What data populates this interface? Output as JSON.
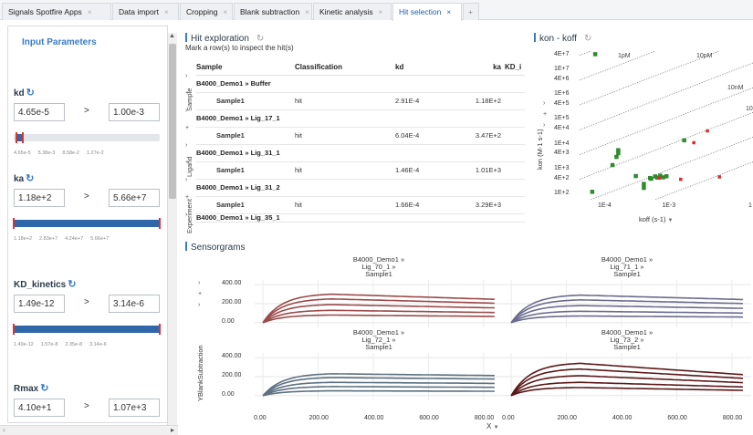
{
  "tabs": [
    {
      "label": "Signals Spotfire Apps",
      "active": false
    },
    {
      "label": "Data import",
      "active": false
    },
    {
      "label": "Cropping",
      "active": false
    },
    {
      "label": "Blank subtraction",
      "active": false
    },
    {
      "label": "Kinetic analysis",
      "active": false
    },
    {
      "label": "Hit selection",
      "active": true
    }
  ],
  "tab_plus": "+",
  "tab_close": "×",
  "left_panel": {
    "title": "Input Parameters",
    "params": [
      {
        "label": "kd",
        "low": "4.65e-5",
        "high": "1.00e-3",
        "ticks": [
          "4.65e-5",
          "5.38e-3",
          "8.58e-2",
          "1.27e-2"
        ],
        "fill_start": 0.02,
        "fill_end": 0.06
      },
      {
        "label": "ka",
        "low": "1.18e+2",
        "high": "5.66e+7",
        "ticks": [
          "1.18e+2",
          "2.83e+7",
          "4.24e+7",
          "5.66e+7"
        ],
        "fill_start": 0.0,
        "fill_end": 1.0
      },
      {
        "label": "KD_kinetics",
        "low": "1.49e-12",
        "high": "3.14e-6",
        "ticks": [
          "1.49e-12",
          "1.57e-8",
          "2.35e-8",
          "3.14e-6"
        ],
        "fill_start": 0.0,
        "fill_end": 1.0
      },
      {
        "label": "Rmax",
        "low": "4.10e+1",
        "high": "1.07e+3"
      }
    ],
    "gt_symbol": ">"
  },
  "hit_exploration": {
    "title": "Hit exploration",
    "hint": "Mark a row(s) to inspect the hit(s)",
    "side_labels": [
      "Sample",
      "Ligand",
      "Experiment"
    ],
    "columns": [
      "Sample",
      "Classification",
      "kd",
      "ka",
      "KD_i"
    ],
    "rows": [
      {
        "type": "group",
        "label": "B4000_Demo1 » Buffer"
      },
      {
        "type": "data",
        "sample": "Sample1",
        "classification": "hit",
        "kd": "2.91E-4",
        "ka": "1.18E+2"
      },
      {
        "type": "group",
        "label": "B4000_Demo1 » Lig_17_1"
      },
      {
        "type": "data",
        "sample": "Sample1",
        "classification": "hit",
        "kd": "6.04E-4",
        "ka": "3.47E+2"
      },
      {
        "type": "group",
        "label": "B4000_Demo1 » Lig_31_1"
      },
      {
        "type": "data",
        "sample": "Sample1",
        "classification": "hit",
        "kd": "1.46E-4",
        "ka": "1.01E+3"
      },
      {
        "type": "group",
        "label": "B4000_Demo1 » Lig_31_2"
      },
      {
        "type": "data",
        "sample": "Sample1",
        "classification": "hit",
        "kd": "1.66E-4",
        "ka": "3.29E+3"
      },
      {
        "type": "group",
        "label": "B4000_Demo1 » Lig_35_1"
      }
    ]
  },
  "kon_koff": {
    "title": "kon - koff",
    "ylabel": "kon (M-1 s-1)",
    "xlabel": "koff (s-1)",
    "yticks": [
      "4E+7",
      "1E+7",
      "4E+6",
      "1E+6",
      "4E+5",
      "1E+5",
      "4E+4",
      "1E+4",
      "4E+3",
      "1E+3",
      "4E+2",
      "1E+2"
    ],
    "xticks": [
      "1E-4",
      "1E-3",
      "1"
    ],
    "line_labels": [
      "1pM",
      "10pM",
      "10nM",
      "10"
    ],
    "colors": {
      "hit": "#2e8b2e",
      "nonhit": "#e02828"
    }
  },
  "sensorgrams": {
    "title": "Sensorgrams",
    "ylabel": "YBlankSubtraction",
    "xlabel": "X",
    "yticks": [
      "400.00",
      "200.00",
      "0.00"
    ],
    "xticks": [
      "0.00",
      "200.00",
      "400.00",
      "600.00",
      "800.00"
    ],
    "facets": [
      {
        "line1": "B4000_Demo1 »",
        "line2": "Lig_70_1 »",
        "line3": "Sample1",
        "color": "#9b4a4a"
      },
      {
        "line1": "B4000_Demo1 »",
        "line2": "Lig_71_1 »",
        "line3": "Sample1",
        "color": "#6b6b8f"
      },
      {
        "line1": "B4000_Demo1 »",
        "line2": "Lig_72_1 »",
        "line3": "Sample1",
        "color": "#5b7080"
      },
      {
        "line1": "B4000_Demo1 »",
        "line2": "Lig_73_2 »",
        "line3": "Sample1",
        "color": "#5a1818"
      }
    ]
  },
  "chart_data": [
    {
      "type": "scatter",
      "title": "kon - koff",
      "xlabel": "koff (s-1)",
      "ylabel": "kon (M-1 s-1)",
      "xscale": "log",
      "yscale": "log",
      "xlim": [
        4e-05,
        0.02
      ],
      "ylim": [
        60,
        60000000
      ],
      "series": [
        {
          "name": "hit",
          "points": [
            [
              7e-05,
              45000000
            ],
            [
              6.3e-05,
              125
            ],
            [
              0.00013,
              1500
            ],
            [
              0.00015,
              3200
            ],
            [
              0.00016,
              4500
            ],
            [
              0.00016,
              6000
            ],
            [
              0.0003,
              540
            ],
            [
              0.0004,
              180
            ],
            [
              0.0005,
              450
            ],
            [
              0.00052,
              420
            ],
            [
              0.0006,
              520
            ],
            [
              0.00065,
              470
            ],
            [
              0.00072,
              560
            ],
            [
              0.0008,
              480
            ],
            [
              0.0009,
              530
            ],
            [
              0.0017,
              15000
            ],
            [
              0.0004,
              260
            ]
          ]
        },
        {
          "name": "non-hit",
          "points": [
            [
              0.0024,
              12000
            ],
            [
              0.0039,
              36000
            ],
            [
              0.0015,
              400
            ],
            [
              0.006,
              500
            ],
            [
              0.0007,
              450
            ]
          ]
        }
      ]
    },
    {
      "type": "line",
      "title": "Sensorgrams",
      "xlabel": "X",
      "ylabel": "YBlankSubtraction",
      "xlim": [
        -30,
        870
      ],
      "ylim": [
        -50,
        450
      ],
      "facets": [
        {
          "name": "Lig_70_1",
          "peaks": [
            300,
            250,
            190,
            130,
            80
          ],
          "end_fraction": 0.82
        },
        {
          "name": "Lig_71_1",
          "peaks": [
            290,
            240,
            180,
            120,
            70
          ],
          "end_fraction": 0.84
        },
        {
          "name": "Lig_72_1",
          "peaks": [
            230,
            190,
            140,
            95,
            50
          ],
          "end_fraction": 0.92
        },
        {
          "name": "Lig_73_2",
          "peaks": [
            340,
            280,
            210,
            140,
            85
          ],
          "end_fraction": 0.65
        }
      ],
      "x_peak": 250
    }
  ]
}
